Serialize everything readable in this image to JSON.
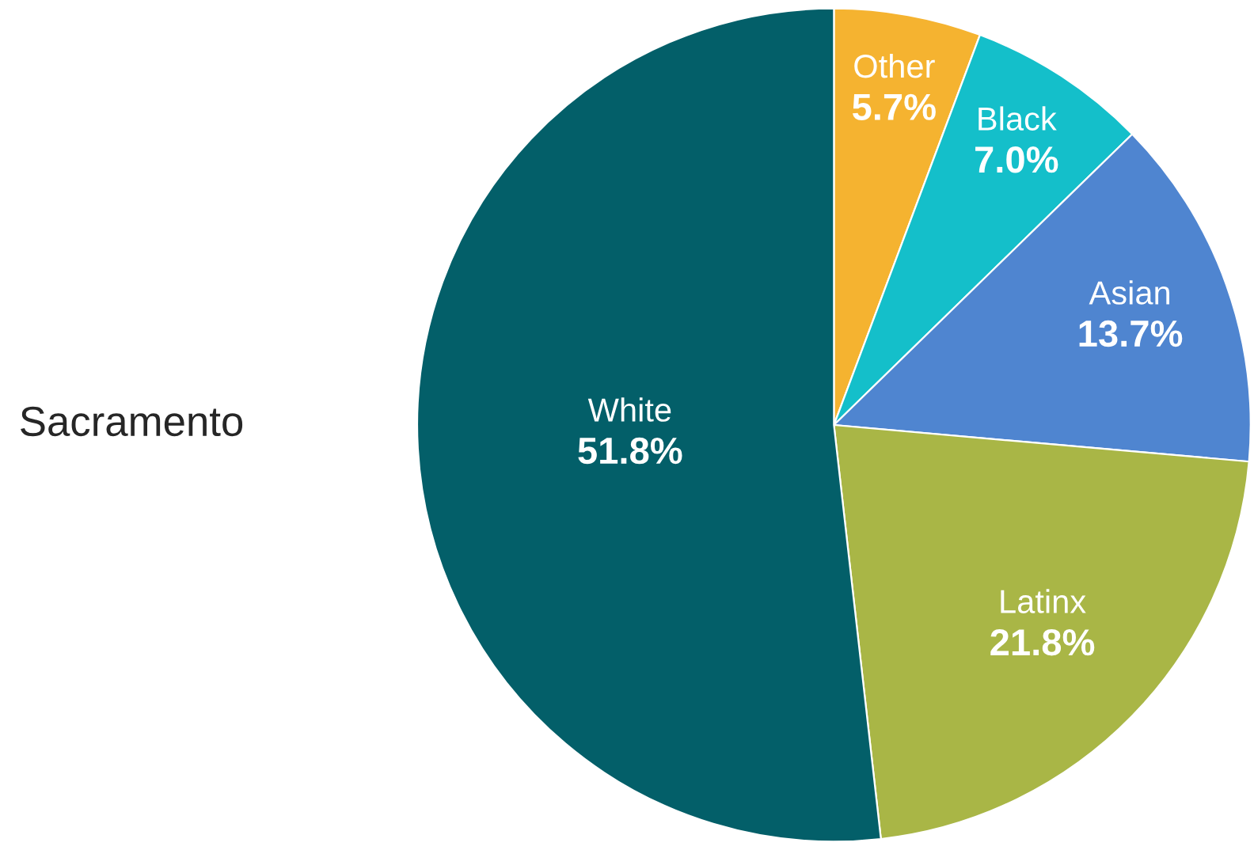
{
  "chart_data": {
    "type": "pie",
    "title": "Sacramento",
    "categories": [
      "Other",
      "Black",
      "Asian",
      "Latinx",
      "White"
    ],
    "values": [
      5.7,
      7.0,
      13.7,
      21.8,
      51.8
    ],
    "colors": [
      "#f5b330",
      "#14bfca",
      "#4f85d0",
      "#a9b646",
      "#035f69"
    ],
    "value_labels": [
      "5.7%",
      "7.0%",
      "13.7%",
      "21.8%",
      "51.8%"
    ]
  }
}
